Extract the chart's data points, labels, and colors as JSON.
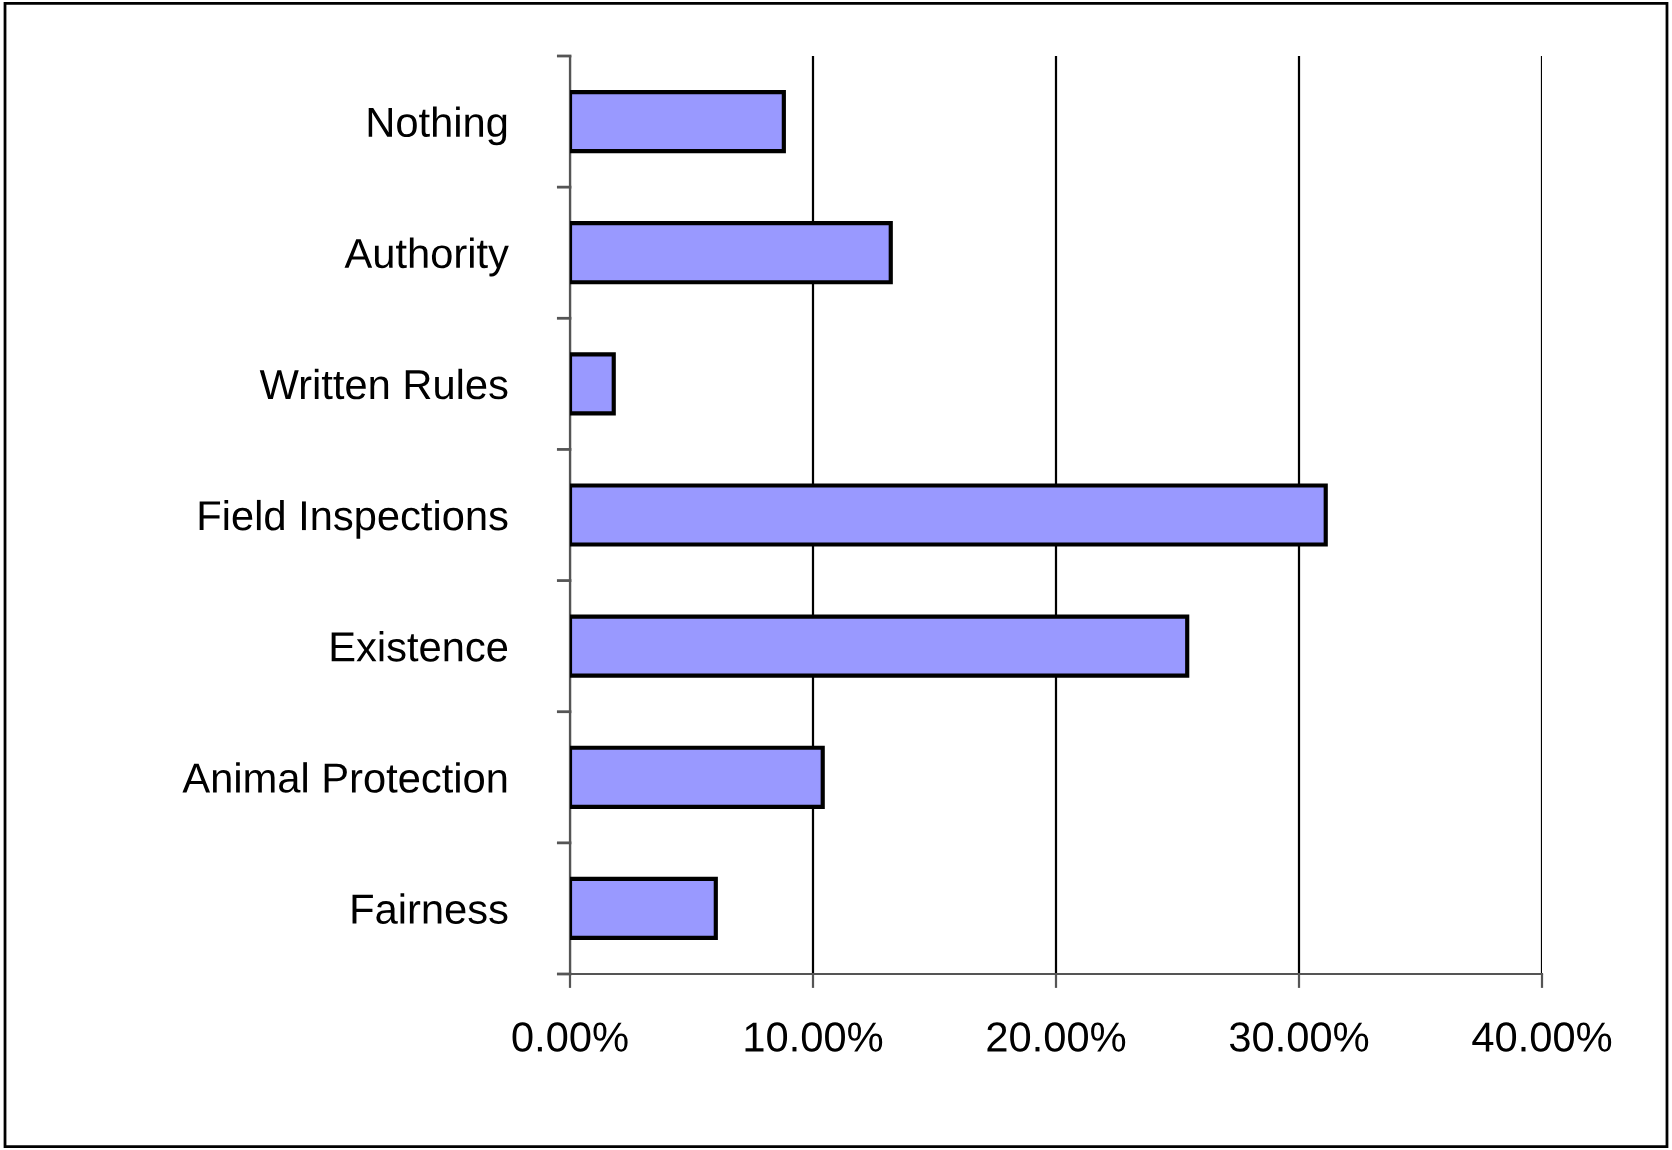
{
  "chart_data": {
    "type": "bar",
    "orientation": "horizontal",
    "categories": [
      "Nothing",
      "Authority",
      "Written Rules",
      "Field Inspections",
      "Existence",
      "Animal Protection",
      "Fairness"
    ],
    "values": [
      8.8,
      13.2,
      1.8,
      31.1,
      25.4,
      10.4,
      6.0
    ],
    "color": "#9999ff",
    "xlim": [
      0,
      40
    ],
    "xticks": [
      {
        "value": 0,
        "label": "0.00%"
      },
      {
        "value": 10,
        "label": "10.00%"
      },
      {
        "value": 20,
        "label": "20.00%"
      },
      {
        "value": 30,
        "label": "30.00%"
      },
      {
        "value": 40,
        "label": "40.00%"
      }
    ],
    "grid": "x",
    "legend": false
  }
}
